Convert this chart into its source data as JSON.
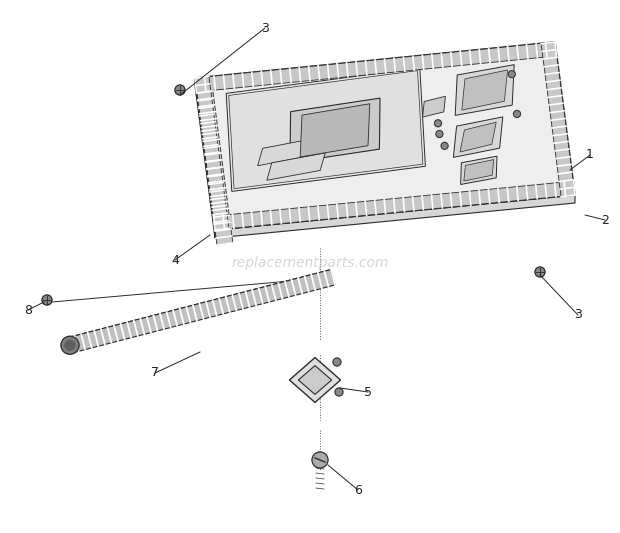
{
  "background_color": "#ffffff",
  "lc": "#2a2a2a",
  "watermark_text": "replacementparts.com",
  "watermark_color": "#bbbbbb",
  "watermark_alpha": 0.6,
  "watermark_fontsize": 10,
  "label_fontsize": 9,
  "label_color": "#222222"
}
